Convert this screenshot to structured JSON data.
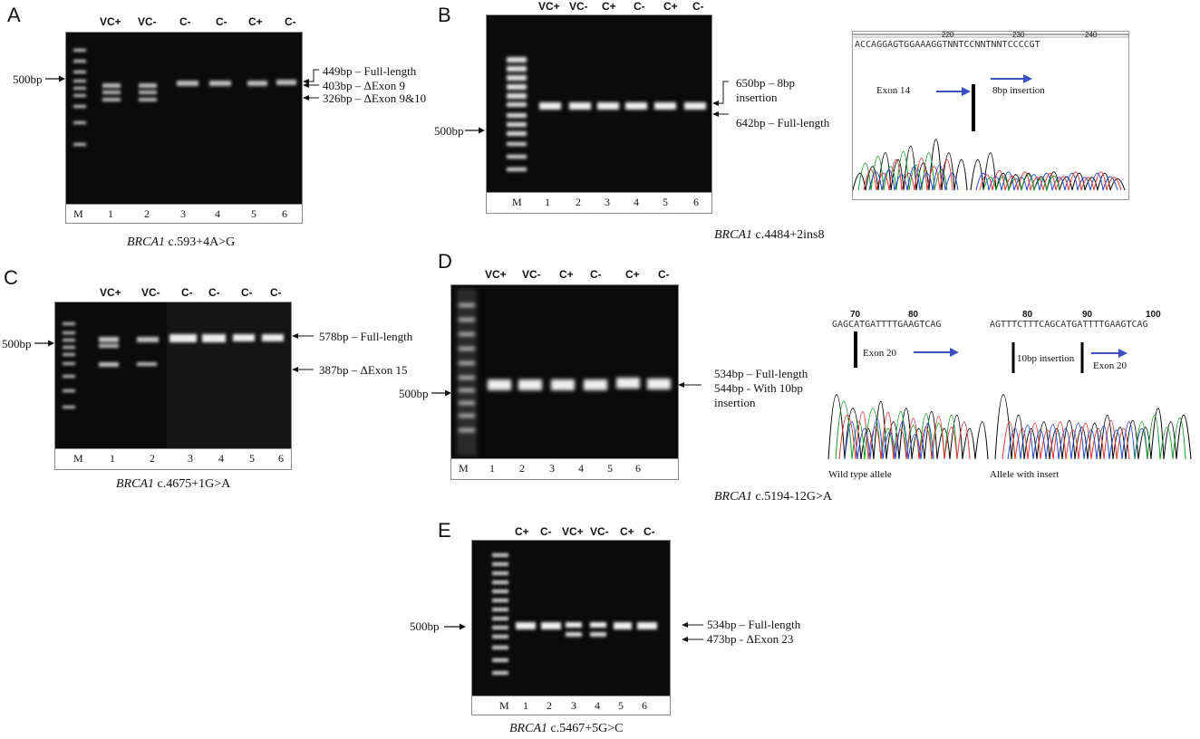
{
  "panels": {
    "A": {
      "letter": "A",
      "lanes": [
        "VC+",
        "VC-",
        "C-",
        "C-",
        "C+",
        "C-"
      ],
      "marker": "M",
      "numbers": [
        "1",
        "2",
        "3",
        "4",
        "5",
        "6"
      ],
      "ref": "500bp",
      "bands": [
        "449bp – Full-length",
        "403bp – ΔExon 9",
        "326bp – ΔExon 9&10"
      ],
      "gene": "BRCA1",
      "variant": " c.593+4A>G"
    },
    "B": {
      "letter": "B",
      "lanes": [
        "VC+",
        "VC-",
        "C+",
        "C-",
        "C+",
        "C-"
      ],
      "marker": "M",
      "numbers": [
        "1",
        "2",
        "3",
        "4",
        "5",
        "6"
      ],
      "ref": "500bp",
      "bands": [
        "650bp – 8bp",
        "insertion",
        "642bp – Full-length"
      ],
      "gene": "BRCA1",
      "variant": " c.4484+2ins8",
      "seq_text": "ACCAGGAGTGGAAAGGTNNTCCNNTNNTCCCCGT",
      "seq_ticks": [
        "220",
        "230",
        "240"
      ],
      "exon_label": "Exon 14",
      "ins_label": "8bp insertion"
    },
    "C": {
      "letter": "C",
      "lanes": [
        "VC+",
        "VC-",
        "C-",
        "C-",
        "C-",
        "C-"
      ],
      "marker": "M",
      "numbers": [
        "1",
        "2",
        "3",
        "4",
        "5",
        "6"
      ],
      "ref": "500bp",
      "bands": [
        "578bp – Full-length",
        "387bp – ΔExon 15"
      ],
      "gene": "BRCA1",
      "variant": " c.4675+1G>A"
    },
    "D": {
      "letter": "D",
      "lanes": [
        "VC+",
        "VC-",
        "C+",
        "C-",
        "C+",
        "C-"
      ],
      "marker": "M",
      "numbers": [
        "1",
        "2",
        "3",
        "4",
        "5",
        "6"
      ],
      "ref": "500bp",
      "bands": [
        "534bp – Full-length",
        "544bp -  With 10bp",
        "insertion"
      ],
      "gene": "BRCA1",
      "variant": " c.5194-12G>A",
      "seq1_text": "GAGCATGATTTTGAAGTCAG",
      "seq2_text": "AGTTTCTTTCAGCATGATTTTGAAGTCAG",
      "seq1_ticks": [
        "70",
        "80"
      ],
      "seq2_ticks": [
        "80",
        "90",
        "100"
      ],
      "exon_label1": "Exon 20",
      "ins_label": "10bp insertion",
      "exon_label2": "Exon 20",
      "wt_label": "Wild type allele",
      "ins_allele_label": "Allele with insert"
    },
    "E": {
      "letter": "E",
      "lanes": [
        "C+",
        "C-",
        "VC+",
        "VC-",
        "C+",
        "C-"
      ],
      "marker": "M",
      "numbers": [
        "1",
        "2",
        "3",
        "4",
        "5",
        "6"
      ],
      "ref": "500bp",
      "bands": [
        "534bp – Full-length",
        "473bp - ΔExon 23"
      ],
      "gene": "BRCA1",
      "variant": " c.5467+5G>C"
    }
  }
}
